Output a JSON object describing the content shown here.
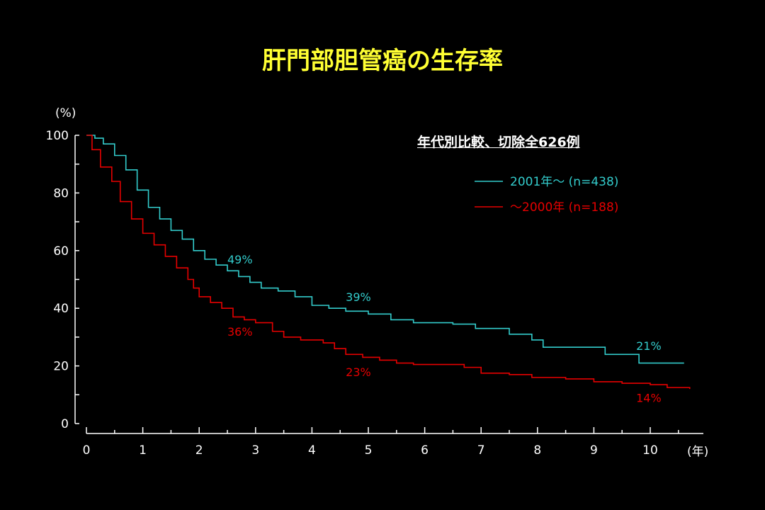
{
  "colors": {
    "background": "#000000",
    "title": "#ffff33",
    "text": "#ffffff",
    "series_after_2001": "#33cccc",
    "series_before_2000": "#e60000"
  },
  "chart_data": {
    "type": "line",
    "title": "肝門部胆管癌の生存率",
    "subtitle": "年代別比較、切除全626例",
    "y_unit": "(%)",
    "x_unit": "(年)",
    "xlim": [
      0,
      11
    ],
    "ylim": [
      0,
      100
    ],
    "xticks": [
      "0",
      "1",
      "2",
      "3",
      "4",
      "5",
      "6",
      "7",
      "8",
      "9",
      "10"
    ],
    "yticks": [
      "0",
      "20",
      "40",
      "60",
      "80",
      "100"
    ],
    "grid": false,
    "legend_position": "top-right",
    "series": [
      {
        "name": "2001年～ (n=438)",
        "color": "#33cccc",
        "points": [
          [
            0,
            100
          ],
          [
            0.15,
            99
          ],
          [
            0.3,
            97
          ],
          [
            0.5,
            93
          ],
          [
            0.7,
            88
          ],
          [
            0.9,
            81
          ],
          [
            1.1,
            75
          ],
          [
            1.3,
            71
          ],
          [
            1.5,
            67
          ],
          [
            1.7,
            64
          ],
          [
            1.9,
            60
          ],
          [
            2.1,
            57
          ],
          [
            2.3,
            55
          ],
          [
            2.5,
            53
          ],
          [
            2.7,
            51
          ],
          [
            2.9,
            49
          ],
          [
            3.1,
            47
          ],
          [
            3.4,
            46
          ],
          [
            3.7,
            44
          ],
          [
            4.0,
            41
          ],
          [
            4.3,
            40
          ],
          [
            4.6,
            39
          ],
          [
            5.0,
            38
          ],
          [
            5.4,
            36
          ],
          [
            5.8,
            35
          ],
          [
            6.2,
            35
          ],
          [
            6.5,
            34.5
          ],
          [
            6.9,
            33
          ],
          [
            7.5,
            31
          ],
          [
            7.9,
            29
          ],
          [
            8.1,
            26.5
          ],
          [
            8.6,
            26.5
          ],
          [
            9.2,
            24
          ],
          [
            9.5,
            24
          ],
          [
            9.8,
            21
          ],
          [
            10.6,
            21
          ]
        ]
      },
      {
        "name": "～2000年 (n=188)",
        "color": "#e60000",
        "points": [
          [
            0,
            100
          ],
          [
            0.1,
            95
          ],
          [
            0.25,
            89
          ],
          [
            0.45,
            84
          ],
          [
            0.6,
            77
          ],
          [
            0.8,
            71
          ],
          [
            1.0,
            66
          ],
          [
            1.2,
            62
          ],
          [
            1.4,
            58
          ],
          [
            1.6,
            54
          ],
          [
            1.8,
            50
          ],
          [
            1.9,
            47
          ],
          [
            2.0,
            44
          ],
          [
            2.2,
            42
          ],
          [
            2.4,
            40
          ],
          [
            2.6,
            37
          ],
          [
            2.8,
            36
          ],
          [
            3.0,
            35
          ],
          [
            3.3,
            32
          ],
          [
            3.5,
            30
          ],
          [
            3.8,
            29
          ],
          [
            4.2,
            28
          ],
          [
            4.4,
            26
          ],
          [
            4.6,
            24
          ],
          [
            4.9,
            23
          ],
          [
            5.2,
            22
          ],
          [
            5.5,
            21
          ],
          [
            5.8,
            20.5
          ],
          [
            6.3,
            20.5
          ],
          [
            6.7,
            19.5
          ],
          [
            7.0,
            17.5
          ],
          [
            7.5,
            17
          ],
          [
            7.9,
            16
          ],
          [
            8.5,
            15.5
          ],
          [
            9.0,
            14.5
          ],
          [
            9.5,
            14
          ],
          [
            10.0,
            13.5
          ],
          [
            10.3,
            12.5
          ],
          [
            10.7,
            12
          ]
        ]
      }
    ],
    "annotations": [
      {
        "text": "49%",
        "x": 2.5,
        "y": 55.5,
        "series": 0
      },
      {
        "text": "39%",
        "x": 4.6,
        "y": 42.5,
        "series": 0
      },
      {
        "text": "21%",
        "x": 9.75,
        "y": 25.5,
        "series": 0
      },
      {
        "text": "36%",
        "x": 2.5,
        "y": 30.5,
        "series": 1
      },
      {
        "text": "23%",
        "x": 4.6,
        "y": 16.5,
        "series": 1
      },
      {
        "text": "14%",
        "x": 9.75,
        "y": 7.5,
        "series": 1
      }
    ]
  }
}
